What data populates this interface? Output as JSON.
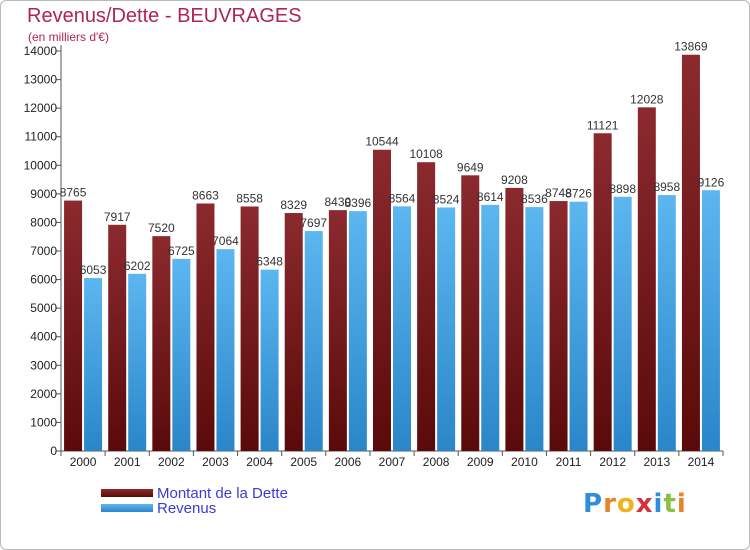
{
  "header": {
    "title": "Revenus/Dette - BEUVRAGES",
    "subtitle": "(en milliers d'€)"
  },
  "chart_data": {
    "type": "bar",
    "title": "Revenus/Dette - BEUVRAGES",
    "subtitle": "(en milliers d'€)",
    "xlabel": "",
    "ylabel": "",
    "ylim": [
      0,
      14000
    ],
    "yticks": [
      0,
      1000,
      2000,
      3000,
      4000,
      5000,
      6000,
      7000,
      8000,
      9000,
      10000,
      11000,
      12000,
      13000,
      14000
    ],
    "grid": false,
    "legend_position": "bottom-left",
    "categories": [
      "2000",
      "2001",
      "2002",
      "2003",
      "2004",
      "2005",
      "2006",
      "2007",
      "2008",
      "2009",
      "2010",
      "2011",
      "2012",
      "2013",
      "2014"
    ],
    "series": [
      {
        "name": "Montant de la Dette",
        "color": "#7a1a1a",
        "values": [
          8765,
          7917,
          7520,
          8663,
          8558,
          8329,
          8430,
          10544,
          10108,
          9649,
          9208,
          8748,
          11121,
          12028,
          13869
        ],
        "labels": [
          "8765",
          "7917",
          "7520",
          "8663",
          "8558",
          "8329",
          "8430",
          "10544",
          "10108",
          "9649",
          "9208",
          "8748",
          "11121",
          "12028",
          "13869"
        ]
      },
      {
        "name": "Revenus",
        "color": "#3d9fe3",
        "values": [
          6053,
          6202,
          6725,
          7064,
          6348,
          7697,
          8396,
          8564,
          8524,
          8614,
          8536,
          8726,
          8898,
          8958,
          9126
        ],
        "labels": [
          "6053",
          "6202",
          "6725",
          "7064",
          "6348",
          "7697",
          "8396",
          "8564",
          "8524",
          "8614",
          "8536",
          "8726",
          "8898",
          "8958",
          "9126"
        ]
      }
    ]
  },
  "legend": {
    "items": [
      {
        "label": "Montant de la Dette",
        "color": "#7a1a1a"
      },
      {
        "label": "Revenus",
        "color": "#3d9fe3"
      }
    ]
  },
  "logo": {
    "letters": [
      "P",
      "r",
      "o",
      "x",
      "i",
      "t",
      "i"
    ],
    "colors": [
      "#2e8fd6",
      "#e8832a",
      "#f2b21b",
      "#d6303a",
      "#2e8fd6",
      "#8cbf3f",
      "#e8832a"
    ]
  }
}
